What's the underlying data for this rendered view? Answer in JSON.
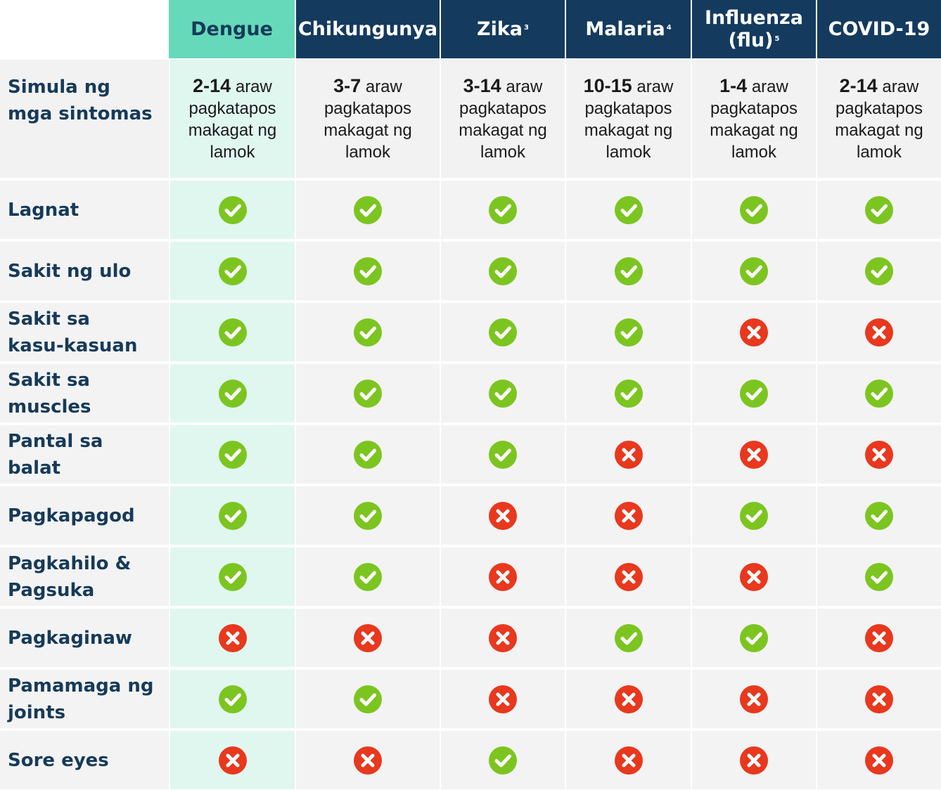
{
  "colors": {
    "header_navy": "#143a5e",
    "header_dengue": "#66d9bb",
    "dengue_column": "#e0f7f0",
    "row_gray": "#f2f2f2",
    "check_green": "#7cc520",
    "cross_red": "#e8381e",
    "row_label_text": "#163a59",
    "gridline": "#ffffff"
  },
  "icons": {
    "yes": "check-circle-icon",
    "no": "x-circle-icon"
  },
  "columns": [
    {
      "label": "Dengue",
      "sup": ""
    },
    {
      "label": "Chikungunya",
      "sup": ""
    },
    {
      "label": "Zika",
      "sup": "3"
    },
    {
      "label": "Malaria",
      "sup": "4"
    },
    {
      "label": "Influenza (flu)",
      "sup": "5"
    },
    {
      "label": "COVID-19",
      "sup": ""
    }
  ],
  "onset_row": {
    "label": "Simula ng mga sintomas",
    "unit": "araw",
    "suffix": "pagkatapos makagat ng lamok",
    "values": [
      "2-14",
      "3-7",
      "3-14",
      "10-15",
      "1-4",
      "2-14"
    ]
  },
  "symptoms": [
    {
      "label": "Lagnat",
      "values": [
        true,
        true,
        true,
        true,
        true,
        true
      ]
    },
    {
      "label": "Sakit ng ulo",
      "values": [
        true,
        true,
        true,
        true,
        true,
        true
      ]
    },
    {
      "label": "Sakit sa kasu-kasuan",
      "values": [
        true,
        true,
        true,
        true,
        false,
        false
      ]
    },
    {
      "label": "Sakit sa muscles",
      "values": [
        true,
        true,
        true,
        true,
        true,
        true
      ]
    },
    {
      "label": "Pantal sa balat",
      "values": [
        true,
        true,
        true,
        false,
        false,
        false
      ]
    },
    {
      "label": "Pagkapagod",
      "values": [
        true,
        true,
        false,
        false,
        true,
        true
      ]
    },
    {
      "label": "Pagkahilo & Pagsuka",
      "values": [
        true,
        true,
        false,
        false,
        false,
        true
      ]
    },
    {
      "label": "Pagkaginaw",
      "values": [
        false,
        false,
        false,
        true,
        true,
        false
      ]
    },
    {
      "label": "Pamamaga ng joints",
      "values": [
        true,
        true,
        false,
        false,
        false,
        false
      ]
    },
    {
      "label": "Sore eyes",
      "values": [
        false,
        false,
        true,
        false,
        false,
        false
      ]
    }
  ]
}
